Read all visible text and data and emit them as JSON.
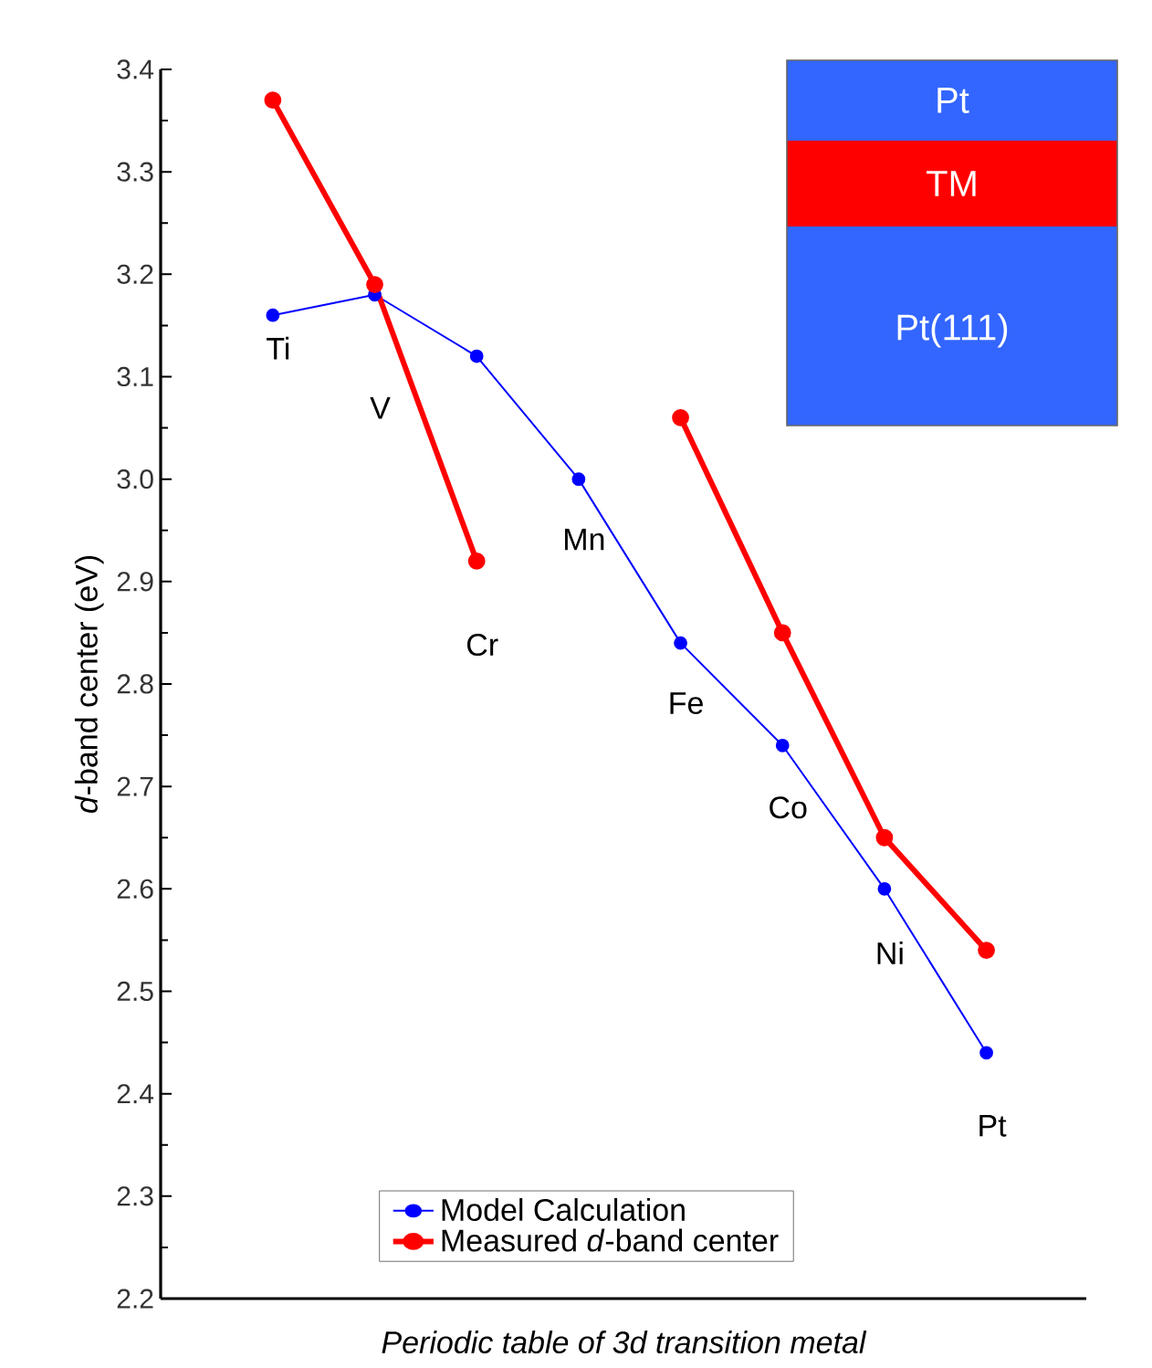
{
  "chart_data": {
    "type": "line",
    "xlabel": "Periodic table of 3d transition metal",
    "ylabel": "*d*-band center (eV)",
    "categories": [
      "Ti",
      "V",
      "Cr",
      "Mn",
      "Fe",
      "Co",
      "Ni",
      "Pt"
    ],
    "series": [
      {
        "name": "Model Calculation",
        "color": "#0000ff",
        "values": [
          3.16,
          3.18,
          3.12,
          3.0,
          2.84,
          2.74,
          2.6,
          2.44
        ]
      },
      {
        "name": "Measured *d*-band center",
        "color": "#ff0000",
        "values": [
          3.37,
          3.19,
          2.92,
          null,
          3.06,
          2.85,
          2.65,
          2.54
        ]
      }
    ],
    "ylim": [
      2.2,
      3.4
    ],
    "yticks": [
      2.2,
      2.3,
      2.4,
      2.5,
      2.6,
      2.7,
      2.8,
      2.9,
      {
        "value": 3.0,
        "label": "3.0"
      },
      3.1,
      3.2,
      3.3,
      3.4
    ],
    "marker": "circle",
    "line_style": "solid",
    "legend": "bottom",
    "annotations": [
      "Pt",
      "TM",
      "Pt(111)"
    ]
  }
}
